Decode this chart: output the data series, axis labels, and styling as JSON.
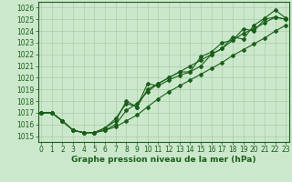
{
  "xlabel": "Graphe pression niveau de la mer (hPa)",
  "background_color": "#cce8cc",
  "grid_color": "#aaccaa",
  "line_color": "#1a5e1a",
  "ylim": [
    1014.5,
    1026.5
  ],
  "xlim": [
    -0.3,
    23.3
  ],
  "yticks": [
    1015,
    1016,
    1017,
    1018,
    1019,
    1020,
    1021,
    1022,
    1023,
    1024,
    1025,
    1026
  ],
  "xticks": [
    0,
    1,
    2,
    3,
    4,
    5,
    6,
    7,
    8,
    9,
    10,
    11,
    12,
    13,
    14,
    15,
    16,
    17,
    18,
    19,
    20,
    21,
    22,
    23
  ],
  "series": [
    [
      1017.0,
      1017.0,
      1016.3,
      1015.5,
      1015.3,
      1015.3,
      1015.5,
      1015.8,
      1016.3,
      1016.8,
      1017.5,
      1018.2,
      1018.8,
      1019.3,
      1019.8,
      1020.3,
      1020.8,
      1021.3,
      1021.9,
      1022.4,
      1022.9,
      1023.4,
      1024.0,
      1024.5
    ],
    [
      1017.0,
      1017.0,
      1016.3,
      1015.5,
      1015.3,
      1015.3,
      1015.5,
      1016.0,
      1017.2,
      1017.8,
      1018.8,
      1019.5,
      1020.0,
      1020.5,
      1021.0,
      1021.5,
      1022.0,
      1022.5,
      1023.2,
      1023.8,
      1024.2,
      1024.7,
      1025.2,
      1025.0
    ],
    [
      1017.0,
      1017.0,
      1016.3,
      1015.5,
      1015.3,
      1015.3,
      1015.7,
      1016.3,
      1018.0,
      1017.5,
      1019.5,
      1019.3,
      1019.8,
      1020.2,
      1020.5,
      1021.0,
      1022.0,
      1022.5,
      1023.5,
      1023.3,
      1024.5,
      1025.1,
      1025.8,
      1025.1
    ],
    [
      1017.0,
      1017.0,
      1016.3,
      1015.5,
      1015.3,
      1015.3,
      1015.7,
      1016.5,
      1017.8,
      1017.5,
      1019.0,
      1019.5,
      1020.0,
      1020.5,
      1020.5,
      1021.8,
      1022.2,
      1023.0,
      1023.2,
      1024.2,
      1024.0,
      1025.0,
      1025.2,
      1025.0
    ]
  ],
  "marker": "D",
  "markersize": 2.0,
  "linewidth": 0.8,
  "tick_fontsize": 5.5,
  "xlabel_fontsize": 6.5
}
